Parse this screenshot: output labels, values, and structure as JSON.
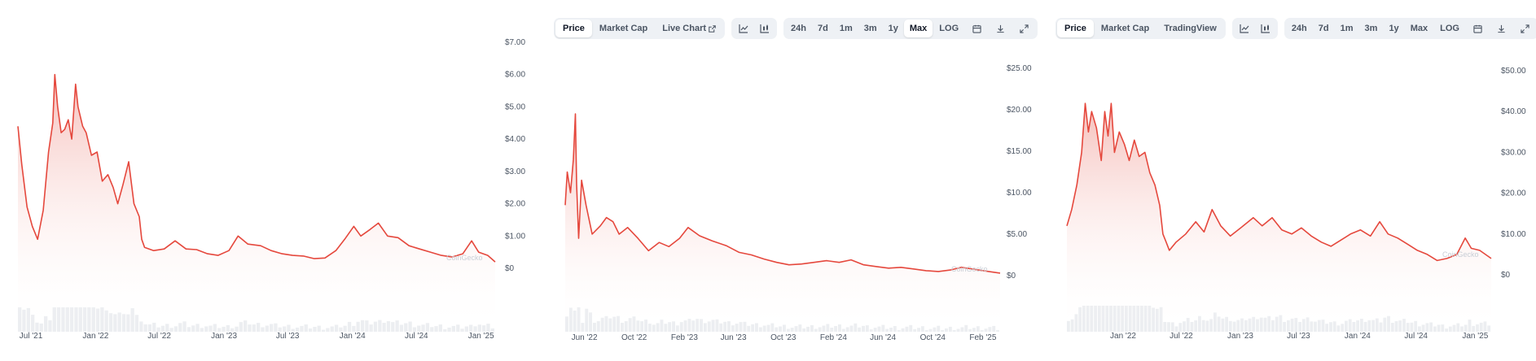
{
  "panels": [
    {
      "id": "p1",
      "toolbar": null,
      "chart_data": {
        "type": "area",
        "title": "",
        "y_ticks": [
          "$7.00",
          "$6.00",
          "$5.00",
          "$4.00",
          "$3.00",
          "$2.00",
          "$1.00",
          "$0"
        ],
        "y_tick_values": [
          7,
          6,
          5,
          4,
          3,
          2,
          1,
          0
        ],
        "ylim": [
          0,
          7
        ],
        "x_ticks": [
          "Jul '21",
          "Jan '22",
          "Jul '22",
          "Jan '23",
          "Jul '23",
          "Jan '24",
          "Jul '24",
          "Jan '25"
        ],
        "x_tick_dates": [
          "2021-07-01",
          "2022-01-01",
          "2022-07-01",
          "2023-01-01",
          "2023-07-01",
          "2024-01-01",
          "2024-07-01",
          "2025-01-01"
        ],
        "xlim": [
          "2021-05-25",
          "2025-02-10"
        ],
        "grid": false,
        "series": [
          {
            "points": [
              [
                "2021-05-25",
                4.4
              ],
              [
                "2021-06-05",
                3.2
              ],
              [
                "2021-06-20",
                1.9
              ],
              [
                "2021-07-05",
                1.3
              ],
              [
                "2021-07-20",
                0.9
              ],
              [
                "2021-08-05",
                1.8
              ],
              [
                "2021-08-20",
                3.6
              ],
              [
                "2021-09-01",
                4.5
              ],
              [
                "2021-09-07",
                6.0
              ],
              [
                "2021-09-15",
                5.0
              ],
              [
                "2021-09-25",
                4.2
              ],
              [
                "2021-10-05",
                4.3
              ],
              [
                "2021-10-15",
                4.6
              ],
              [
                "2021-10-25",
                4.0
              ],
              [
                "2021-11-05",
                5.7
              ],
              [
                "2021-11-12",
                5.0
              ],
              [
                "2021-11-25",
                4.4
              ],
              [
                "2021-12-05",
                4.2
              ],
              [
                "2021-12-20",
                3.5
              ],
              [
                "2022-01-05",
                3.6
              ],
              [
                "2022-01-20",
                2.7
              ],
              [
                "2022-02-05",
                2.9
              ],
              [
                "2022-02-20",
                2.5
              ],
              [
                "2022-03-05",
                2.0
              ],
              [
                "2022-03-20",
                2.6
              ],
              [
                "2022-04-05",
                3.3
              ],
              [
                "2022-04-20",
                2.0
              ],
              [
                "2022-05-05",
                1.6
              ],
              [
                "2022-05-12",
                0.9
              ],
              [
                "2022-05-20",
                0.65
              ],
              [
                "2022-06-15",
                0.55
              ],
              [
                "2022-07-15",
                0.6
              ],
              [
                "2022-08-15",
                0.85
              ],
              [
                "2022-09-15",
                0.6
              ],
              [
                "2022-10-15",
                0.58
              ],
              [
                "2022-11-15",
                0.45
              ],
              [
                "2022-12-15",
                0.4
              ],
              [
                "2023-01-15",
                0.55
              ],
              [
                "2023-02-10",
                1.0
              ],
              [
                "2023-03-10",
                0.75
              ],
              [
                "2023-04-15",
                0.7
              ],
              [
                "2023-05-15",
                0.55
              ],
              [
                "2023-06-15",
                0.45
              ],
              [
                "2023-07-15",
                0.4
              ],
              [
                "2023-08-15",
                0.38
              ],
              [
                "2023-09-15",
                0.3
              ],
              [
                "2023-10-15",
                0.32
              ],
              [
                "2023-11-15",
                0.55
              ],
              [
                "2023-12-10",
                0.9
              ],
              [
                "2024-01-05",
                1.3
              ],
              [
                "2024-01-25",
                1.0
              ],
              [
                "2024-02-20",
                1.2
              ],
              [
                "2024-03-15",
                1.4
              ],
              [
                "2024-04-10",
                1.0
              ],
              [
                "2024-05-10",
                0.95
              ],
              [
                "2024-06-10",
                0.7
              ],
              [
                "2024-07-10",
                0.6
              ],
              [
                "2024-08-10",
                0.5
              ],
              [
                "2024-09-10",
                0.4
              ],
              [
                "2024-10-10",
                0.35
              ],
              [
                "2024-11-10",
                0.45
              ],
              [
                "2024-12-05",
                0.85
              ],
              [
                "2024-12-25",
                0.5
              ],
              [
                "2025-01-20",
                0.4
              ],
              [
                "2025-02-10",
                0.2
              ]
            ]
          }
        ]
      },
      "watermark": "CoinGecko"
    },
    {
      "id": "p2",
      "toolbar": {
        "tabs": [
          "Price",
          "Market Cap",
          "Live Chart"
        ],
        "active_tab": "Price",
        "ranges": [
          "24h",
          "7d",
          "1m",
          "3m",
          "1y",
          "Max"
        ],
        "active_range": "Max",
        "log_label": "LOG",
        "external_link_icon_after": "Live Chart"
      },
      "chart_data": {
        "type": "area",
        "title": "",
        "y_ticks": [
          "$25.00",
          "$20.00",
          "$15.00",
          "$10.00",
          "$5.00",
          "$0"
        ],
        "y_tick_values": [
          25,
          20,
          15,
          10,
          5,
          0
        ],
        "ylim": [
          0,
          25
        ],
        "x_ticks": [
          "Jun '22",
          "Oct '22",
          "Feb '23",
          "Jun '23",
          "Oct '23",
          "Feb '24",
          "Jun '24",
          "Oct '24",
          "Feb '25"
        ],
        "x_tick_dates": [
          "2022-06-01",
          "2022-10-01",
          "2023-02-01",
          "2023-06-01",
          "2023-10-01",
          "2024-02-01",
          "2024-06-01",
          "2024-10-01",
          "2025-02-01"
        ],
        "xlim": [
          "2022-04-15",
          "2025-03-15"
        ],
        "grid": false,
        "series": [
          {
            "points": [
              [
                "2022-04-15",
                8.5
              ],
              [
                "2022-04-20",
                12.5
              ],
              [
                "2022-04-28",
                10.0
              ],
              [
                "2022-05-05",
                14.0
              ],
              [
                "2022-05-10",
                19.5
              ],
              [
                "2022-05-13",
                11.0
              ],
              [
                "2022-05-18",
                4.5
              ],
              [
                "2022-05-25",
                11.5
              ],
              [
                "2022-06-05",
                8.5
              ],
              [
                "2022-06-20",
                5.0
              ],
              [
                "2022-07-10",
                6.0
              ],
              [
                "2022-07-25",
                7.0
              ],
              [
                "2022-08-10",
                6.5
              ],
              [
                "2022-08-25",
                5.0
              ],
              [
                "2022-09-15",
                5.8
              ],
              [
                "2022-10-10",
                4.5
              ],
              [
                "2022-11-05",
                3.0
              ],
              [
                "2022-12-01",
                4.0
              ],
              [
                "2022-12-25",
                3.5
              ],
              [
                "2023-01-20",
                4.5
              ],
              [
                "2023-02-10",
                5.8
              ],
              [
                "2023-03-10",
                4.8
              ],
              [
                "2023-04-10",
                4.2
              ],
              [
                "2023-05-15",
                3.6
              ],
              [
                "2023-06-15",
                2.8
              ],
              [
                "2023-07-15",
                2.5
              ],
              [
                "2023-08-15",
                2.0
              ],
              [
                "2023-09-15",
                1.6
              ],
              [
                "2023-10-15",
                1.3
              ],
              [
                "2023-11-15",
                1.4
              ],
              [
                "2023-12-15",
                1.6
              ],
              [
                "2024-01-15",
                1.8
              ],
              [
                "2024-02-15",
                1.6
              ],
              [
                "2024-03-15",
                1.9
              ],
              [
                "2024-04-15",
                1.3
              ],
              [
                "2024-05-15",
                1.1
              ],
              [
                "2024-06-15",
                0.9
              ],
              [
                "2024-07-15",
                1.0
              ],
              [
                "2024-08-15",
                0.8
              ],
              [
                "2024-09-15",
                0.6
              ],
              [
                "2024-10-15",
                0.5
              ],
              [
                "2024-11-15",
                0.7
              ],
              [
                "2024-12-10",
                1.0
              ],
              [
                "2025-01-05",
                0.8
              ],
              [
                "2025-02-15",
                0.5
              ],
              [
                "2025-03-15",
                0.3
              ]
            ]
          }
        ]
      },
      "watermark": "CoinGecko"
    },
    {
      "id": "p3",
      "toolbar": {
        "tabs": [
          "Price",
          "Market Cap",
          "TradingView"
        ],
        "active_tab": "Price",
        "ranges": [
          "24h",
          "7d",
          "1m",
          "3m",
          "1y",
          "Max"
        ],
        "active_range": null,
        "log_label": "LOG",
        "external_link_icon_after": null
      },
      "chart_data": {
        "type": "area",
        "title": "",
        "y_ticks": [
          "$50.00",
          "$40.00",
          "$30.00",
          "$20.00",
          "$10.00",
          "$0"
        ],
        "y_tick_values": [
          50,
          40,
          30,
          20,
          10,
          0
        ],
        "ylim": [
          0,
          50
        ],
        "x_ticks": [
          "Jan '22",
          "Jul '22",
          "Jan '23",
          "Jul '23",
          "Jan '24",
          "Jul '24",
          "Jan '25"
        ],
        "x_tick_dates": [
          "2022-01-01",
          "2022-07-01",
          "2023-01-01",
          "2023-07-01",
          "2024-01-01",
          "2024-07-01",
          "2025-01-01"
        ],
        "xlim": [
          "2021-07-10",
          "2025-02-20"
        ],
        "grid": false,
        "series": [
          {
            "points": [
              [
                "2021-07-10",
                12.0
              ],
              [
                "2021-07-25",
                16.0
              ],
              [
                "2021-08-10",
                22.0
              ],
              [
                "2021-08-25",
                30.0
              ],
              [
                "2021-09-05",
                42.0
              ],
              [
                "2021-09-15",
                35.0
              ],
              [
                "2021-09-25",
                40.0
              ],
              [
                "2021-10-10",
                36.0
              ],
              [
                "2021-10-25",
                28.0
              ],
              [
                "2021-11-05",
                40.0
              ],
              [
                "2021-11-15",
                34.0
              ],
              [
                "2021-11-25",
                42.0
              ],
              [
                "2021-12-05",
                30.0
              ],
              [
                "2021-12-20",
                35.0
              ],
              [
                "2022-01-05",
                32.0
              ],
              [
                "2022-01-20",
                28.0
              ],
              [
                "2022-02-05",
                33.0
              ],
              [
                "2022-02-20",
                29.0
              ],
              [
                "2022-03-10",
                30.0
              ],
              [
                "2022-03-25",
                25.0
              ],
              [
                "2022-04-10",
                22.0
              ],
              [
                "2022-04-25",
                17.0
              ],
              [
                "2022-05-05",
                10.0
              ],
              [
                "2022-05-15",
                8.0
              ],
              [
                "2022-05-25",
                6.0
              ],
              [
                "2022-06-15",
                8.0
              ],
              [
                "2022-07-15",
                10.0
              ],
              [
                "2022-08-15",
                13.0
              ],
              [
                "2022-09-10",
                10.5
              ],
              [
                "2022-10-05",
                16.0
              ],
              [
                "2022-11-01",
                12.0
              ],
              [
                "2022-12-01",
                9.5
              ],
              [
                "2023-01-10",
                12.0
              ],
              [
                "2023-02-10",
                14.0
              ],
              [
                "2023-03-10",
                12.0
              ],
              [
                "2023-04-10",
                14.0
              ],
              [
                "2023-05-10",
                11.0
              ],
              [
                "2023-06-10",
                10.0
              ],
              [
                "2023-07-10",
                11.5
              ],
              [
                "2023-08-10",
                9.5
              ],
              [
                "2023-09-10",
                8.0
              ],
              [
                "2023-10-10",
                7.0
              ],
              [
                "2023-11-10",
                8.5
              ],
              [
                "2023-12-10",
                10.0
              ],
              [
                "2024-01-10",
                11.0
              ],
              [
                "2024-02-10",
                9.5
              ],
              [
                "2024-03-10",
                13.0
              ],
              [
                "2024-04-05",
                10.0
              ],
              [
                "2024-05-05",
                9.0
              ],
              [
                "2024-06-05",
                7.5
              ],
              [
                "2024-07-05",
                6.0
              ],
              [
                "2024-08-05",
                5.0
              ],
              [
                "2024-09-05",
                3.5
              ],
              [
                "2024-10-05",
                4.0
              ],
              [
                "2024-11-05",
                5.0
              ],
              [
                "2024-12-01",
                9.0
              ],
              [
                "2024-12-20",
                6.5
              ],
              [
                "2025-01-15",
                6.0
              ],
              [
                "2025-02-20",
                4.0
              ]
            ]
          }
        ]
      },
      "watermark": "CoinGecko"
    }
  ],
  "colors": {
    "line": "#e5483d",
    "fill_top": "#f2a9a3",
    "volume": "#eceef1",
    "axis_text": "#4b5563",
    "toolbar_bg": "#eef1f5"
  },
  "icons": {
    "line_chart": "line-chart-icon",
    "candle_chart": "candlestick-chart-icon",
    "calendar": "calendar-icon",
    "download": "download-icon",
    "expand": "expand-icon",
    "external_link": "external-link-icon"
  }
}
